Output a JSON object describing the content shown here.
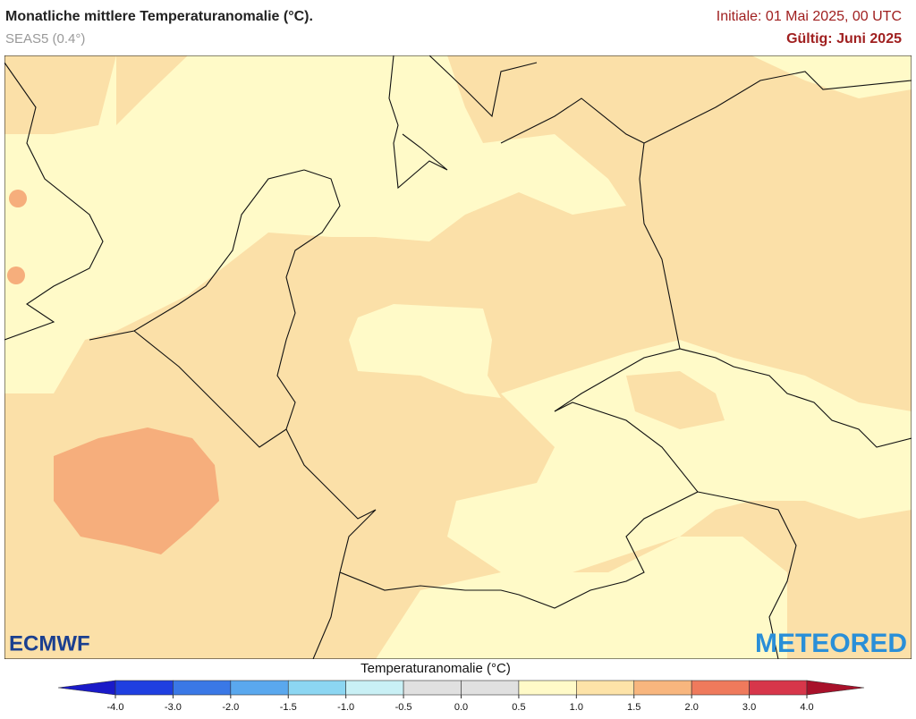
{
  "header": {
    "title": "Monatliche mittlere Temperaturanomalie (°C).",
    "subtitle": "SEAS5 (0.4°)",
    "initial": "Initiale: 01 Mai 2025, 00 UTC",
    "valid": "Gültig: Juni 2025"
  },
  "logos": {
    "left": "ECMWF",
    "right": "METEORED"
  },
  "colorbar": {
    "title": "Temperaturanomalie (°C)",
    "ticks": [
      {
        "value": -4,
        "label": "-4.0"
      },
      {
        "value": -3,
        "label": "-3.0"
      },
      {
        "value": -2,
        "label": "-2.0"
      },
      {
        "value": -1.5,
        "label": "-1.5"
      },
      {
        "value": -1,
        "label": "-1.0"
      },
      {
        "value": -0.5,
        "label": "-0.5"
      },
      {
        "value": 0,
        "label": "0.0"
      },
      {
        "value": 0.5,
        "label": "0.5"
      },
      {
        "value": 1,
        "label": "1.0"
      },
      {
        "value": 1.5,
        "label": "1.5"
      },
      {
        "value": 2,
        "label": "2.0"
      },
      {
        "value": 3,
        "label": "3.0"
      },
      {
        "value": 4,
        "label": "4.0"
      }
    ],
    "colors": [
      "#1a1ac8",
      "#1f3fe0",
      "#3a78e6",
      "#5aa8ee",
      "#8cd6f2",
      "#c9f0f5",
      "#e0e0e0",
      "#e0e0e0",
      "#fffac8",
      "#fde3a8",
      "#f8b67e",
      "#ef7a5c",
      "#d7364a",
      "#a8112a"
    ]
  }
}
